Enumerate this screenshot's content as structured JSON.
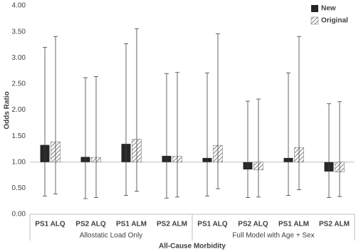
{
  "chart_data": {
    "type": "bar",
    "y_label": "Odds Ratio",
    "x_label": "All-Cause Morbidity",
    "categories": [
      "PS1 ALQ",
      "PS2 ALQ",
      "PS1 ALM",
      "PS2 ALM",
      "PS1 ALQ",
      "PS2 ALQ",
      "PS1 ALM",
      "PS2 ALM"
    ],
    "groups": [
      {
        "name": "Allostatic Load Only",
        "size": 4
      },
      {
        "name": "Full Model with Age + Sex",
        "size": 4
      }
    ],
    "bar_base": 1,
    "series": [
      {
        "name": "New",
        "color": "#262626",
        "hatch": false,
        "values": [
          1.33,
          1.1,
          1.35,
          1.12,
          1.08,
          0.86,
          1.08,
          0.82
        ],
        "lower": [
          0.35,
          0.3,
          0.36,
          0.31,
          0.35,
          0.32,
          0.36,
          0.32
        ],
        "upper": [
          3.2,
          2.62,
          3.27,
          2.7,
          2.71,
          2.17,
          2.71,
          2.12
        ]
      },
      {
        "name": "Original",
        "color": "#7f7f7f",
        "hatch": true,
        "values": [
          1.39,
          1.09,
          1.44,
          1.11,
          1.32,
          0.85,
          1.28,
          0.81
        ],
        "lower": [
          0.39,
          0.32,
          0.44,
          0.33,
          0.49,
          0.33,
          0.47,
          0.34
        ],
        "upper": [
          3.41,
          2.64,
          3.56,
          2.72,
          3.46,
          2.21,
          3.41,
          2.16
        ]
      }
    ],
    "ylim": [
      0,
      4
    ],
    "yticks": [
      {
        "value": 0,
        "label": "0.00"
      },
      {
        "value": 0.5,
        "label": "0.50"
      },
      {
        "value": 1,
        "label": "1.00"
      },
      {
        "value": 1.5,
        "label": "1.50"
      },
      {
        "value": 2,
        "label": "2.00"
      },
      {
        "value": 2.5,
        "label": "2.50"
      },
      {
        "value": 3,
        "label": "3.00"
      },
      {
        "value": 3.5,
        "label": "3.50"
      },
      {
        "value": 4,
        "label": "4.00"
      }
    ],
    "legend": "top-right"
  }
}
